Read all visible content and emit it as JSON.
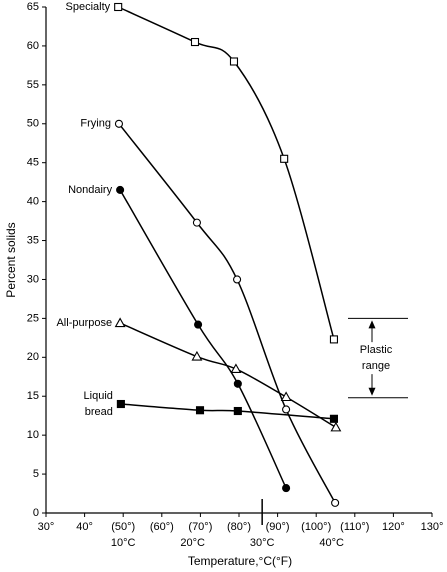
{
  "chart_data": {
    "type": "line",
    "y_label": "Percent solids",
    "x_label": "Temperature,°C(°F)",
    "xlim": [
      30,
      130
    ],
    "xticks": [
      {
        "value": 30,
        "label": "30°"
      },
      {
        "value": 40,
        "label": "40°"
      },
      {
        "value": 50,
        "label": "(50°)"
      },
      {
        "value": 60,
        "label": "(60°)"
      },
      {
        "value": 70,
        "label": "(70°)"
      },
      {
        "value": 80,
        "label": "(80°)"
      },
      {
        "value": 90,
        "label": "(90°)"
      },
      {
        "value": 100,
        "label": "(100°)"
      },
      {
        "value": 110,
        "label": "(110°)"
      },
      {
        "value": 120,
        "label": "120°"
      },
      {
        "value": 130,
        "label": "130°"
      }
    ],
    "celsius_ticks": [
      {
        "value": 50,
        "label": "10°C"
      },
      {
        "value": 68,
        "label": "20°C"
      },
      {
        "value": 86,
        "label": "30°C"
      },
      {
        "value": 104,
        "label": "40°C"
      }
    ],
    "ylim": [
      0,
      65
    ],
    "yticks": [
      0,
      5,
      10,
      15,
      20,
      25,
      30,
      35,
      40,
      45,
      50,
      55,
      60,
      65
    ],
    "series": [
      {
        "name": "Specialty",
        "color": "#000000",
        "marker": "square",
        "filled": false,
        "x": [
          48.7,
          68.6,
          78.7,
          91.7,
          104.6
        ],
        "values": [
          65,
          60.5,
          58,
          45.5,
          22.3
        ]
      },
      {
        "name": "Frying",
        "color": "#000000",
        "marker": "circle",
        "filled": false,
        "x": [
          48.9,
          69.1,
          79.5,
          92.2,
          104.9
        ],
        "values": [
          50,
          37.3,
          30,
          13.3,
          1.3
        ]
      },
      {
        "name": "Nondairy",
        "color": "#000000",
        "marker": "circle",
        "filled": true,
        "x": [
          49.2,
          69.4,
          79.7,
          92.2
        ],
        "values": [
          41.5,
          24.2,
          16.6,
          3.2
        ]
      },
      {
        "name": "All-purpose",
        "color": "#000000",
        "marker": "triangle",
        "filled": false,
        "x": [
          49.2,
          69.1,
          79.2,
          92.2,
          105.1
        ],
        "values": [
          24.4,
          20.1,
          18.5,
          14.9,
          11
        ]
      },
      {
        "name": "Liquid bread",
        "color": "#000000",
        "marker": "square",
        "filled": true,
        "x": [
          49.4,
          69.9,
          79.7,
          104.6
        ],
        "values": [
          14,
          13.2,
          13.1,
          12.1
        ]
      }
    ],
    "plastic_range": {
      "label": "Plastic range",
      "low": 14.8,
      "high": 25
    }
  }
}
